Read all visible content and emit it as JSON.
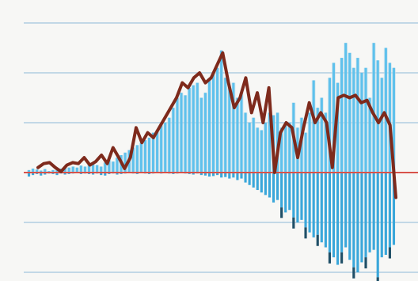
{
  "colors": {
    "background": "#f7f7f5",
    "gridline": "#c2d8e6",
    "bar_positive": "#5fc1ec",
    "bar_negative": "#3aa7da",
    "bar_tip_dark": "#1f4f67",
    "envelope": "#c9e0ea",
    "zero_line": "#d8524a",
    "line": "#7e2a1c"
  },
  "chart_data": {
    "type": "bar",
    "title": "",
    "xlabel": "",
    "ylabel": "",
    "grid": true,
    "legend": "none",
    "ylim": [
      -2,
      3
    ],
    "gridlines": [
      3,
      2,
      1,
      0,
      -1,
      -2
    ],
    "series": [
      {
        "type": "bar",
        "values": [
          0.05,
          0.08,
          0.06,
          0.04,
          0.07,
          0.03,
          0.05,
          0.06,
          0.08,
          0.09,
          0.1,
          0.12,
          0.1,
          0.14,
          0.12,
          0.16,
          0.18,
          0.15,
          0.12,
          0.2,
          0.25,
          0.22,
          0.3,
          0.35,
          0.4,
          0.45,
          0.5,
          0.55,
          0.6,
          0.65,
          0.7,
          0.8,
          0.85,
          0.95,
          1.0,
          1.1,
          1.3,
          1.5,
          1.6,
          1.55,
          1.7,
          1.75,
          1.8,
          1.5,
          1.6,
          1.85,
          2.0,
          2.1,
          2.45,
          1.9,
          1.7,
          1.8,
          1.5,
          1.6,
          1.2,
          1.0,
          1.1,
          0.9,
          0.85,
          1.0,
          1.2,
          1.15,
          1.2,
          0.9,
          0.95,
          1.0,
          1.4,
          0.9,
          1.1,
          0.8,
          1.2,
          1.85,
          1.3,
          1.5,
          1.2,
          1.9,
          2.2,
          1.8,
          2.3,
          2.6,
          2.4,
          2.1,
          2.3,
          2.0,
          2.1,
          1.5,
          2.6,
          2.25,
          1.9,
          2.5,
          2.2,
          2.1
        ]
      },
      {
        "type": "bar",
        "values": [
          -0.08,
          -0.05,
          -0.03,
          -0.06,
          -0.04,
          -0.02,
          -0.03,
          -0.05,
          -0.02,
          -0.04,
          -0.03,
          -0.02,
          -0.01,
          -0.03,
          -0.02,
          -0.03,
          -0.04,
          -0.02,
          -0.05,
          -0.06,
          -0.03,
          -0.02,
          -0.04,
          -0.03,
          -0.02,
          -0.01,
          -0.02,
          -0.03,
          -0.01,
          -0.02,
          -0.03,
          -0.02,
          -0.01,
          -0.02,
          -0.01,
          -0.02,
          -0.03,
          -0.02,
          -0.01,
          -0.02,
          -0.03,
          -0.04,
          -0.02,
          -0.05,
          -0.06,
          -0.08,
          -0.07,
          -0.05,
          -0.1,
          -0.09,
          -0.12,
          -0.1,
          -0.15,
          -0.12,
          -0.2,
          -0.25,
          -0.3,
          -0.35,
          -0.4,
          -0.45,
          -0.5,
          -0.6,
          -0.55,
          -0.7,
          -0.8,
          -0.75,
          -0.9,
          -1.0,
          -0.95,
          -1.1,
          -1.2,
          -1.3,
          -1.25,
          -1.4,
          -1.5,
          -1.6,
          -1.7,
          -1.85,
          -1.6,
          -1.5,
          -1.75,
          -1.9,
          -2.0,
          -1.8,
          -1.7,
          -1.6,
          -1.55,
          -2.1,
          -1.7,
          -1.65,
          -1.5,
          -1.45
        ]
      },
      {
        "type": "line",
        "values": [
          0.1,
          0.18,
          0.2,
          0.1,
          0.02,
          0.15,
          0.2,
          0.18,
          0.3,
          0.15,
          0.22,
          0.35,
          0.18,
          0.5,
          0.3,
          0.08,
          0.3,
          0.9,
          0.6,
          0.8,
          0.7,
          0.9,
          1.1,
          1.3,
          1.5,
          1.8,
          1.7,
          1.9,
          2.0,
          1.8,
          1.9,
          2.15,
          2.4,
          1.8,
          1.3,
          1.5,
          1.9,
          1.2,
          1.6,
          1.0,
          1.7,
          0.0,
          0.8,
          1.0,
          0.9,
          0.3,
          0.9,
          1.4,
          1.0,
          1.2,
          1.0,
          0.1,
          1.5,
          1.55,
          1.5,
          1.55,
          1.4,
          1.45,
          1.2,
          1.0,
          1.2,
          0.95,
          -0.5
        ]
      }
    ]
  }
}
